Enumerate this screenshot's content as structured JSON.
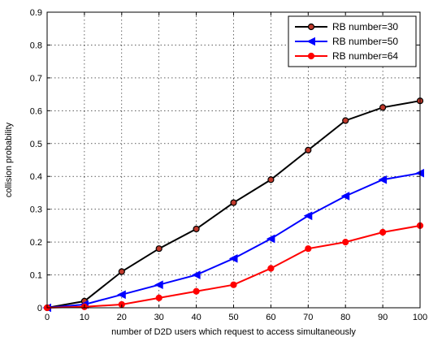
{
  "chart_data": {
    "type": "line",
    "title": "",
    "xlabel": "number of D2D users which request to access simultaneously",
    "ylabel": "collision probability",
    "xlim": [
      0,
      100
    ],
    "ylim": [
      0,
      0.9
    ],
    "xticks": [
      0,
      10,
      20,
      30,
      40,
      50,
      60,
      70,
      80,
      90,
      100
    ],
    "yticks": [
      0,
      0.1,
      0.2,
      0.3,
      0.4,
      0.5,
      0.6,
      0.7,
      0.8,
      0.9
    ],
    "grid": true,
    "legend_position": "top-right",
    "x": [
      0,
      10,
      20,
      30,
      40,
      50,
      60,
      70,
      80,
      90,
      100
    ],
    "series": [
      {
        "name": "RB number=30",
        "color": "#000000",
        "marker": "circle",
        "marker_fill": "#c0392b",
        "values": [
          0,
          0.02,
          0.11,
          0.18,
          0.24,
          0.32,
          0.39,
          0.48,
          0.57,
          0.61,
          0.63
        ]
      },
      {
        "name": "RB number=50",
        "color": "#0000ff",
        "marker": "triangle-left",
        "marker_fill": "#0000ff",
        "values": [
          0,
          0.01,
          0.04,
          0.07,
          0.1,
          0.15,
          0.21,
          0.28,
          0.34,
          0.39,
          0.41
        ]
      },
      {
        "name": "RB number=64",
        "color": "#ff0000",
        "marker": "circle",
        "marker_fill": "#ff0000",
        "values": [
          0,
          0.003,
          0.01,
          0.03,
          0.05,
          0.07,
          0.12,
          0.18,
          0.2,
          0.23,
          0.25
        ]
      }
    ]
  }
}
